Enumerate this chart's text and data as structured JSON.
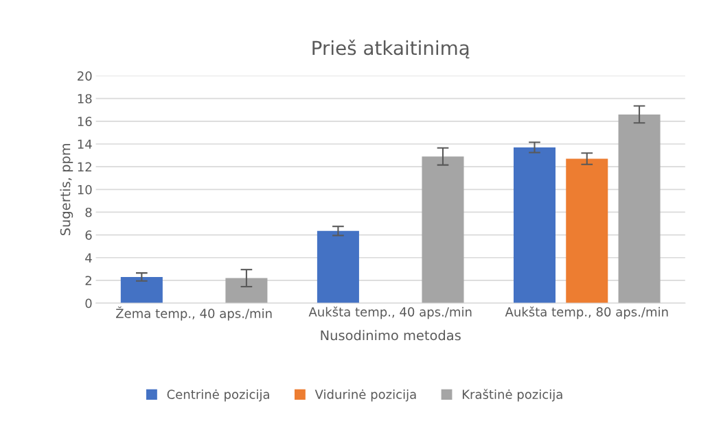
{
  "chart_data": {
    "type": "bar",
    "title": "Prieš atkaitinimą",
    "xlabel": "Nusodinimo metodas",
    "ylabel": "Sugertis, ppm",
    "categories": [
      "Žema temp., 40 aps./min",
      "Aukšta temp., 40 aps./min",
      "Aukšta temp., 80 aps./min"
    ],
    "series": [
      {
        "name": "Centrinė pozicija",
        "color": "#4472c4",
        "values": [
          2.3,
          6.35,
          13.7
        ],
        "errors": [
          0.35,
          0.4,
          0.45
        ]
      },
      {
        "name": "Vidurinė pozicija",
        "color": "#ed7d31",
        "values": [
          null,
          null,
          12.7
        ],
        "errors": [
          null,
          null,
          0.5
        ]
      },
      {
        "name": "Kraštinė pozicija",
        "color": "#a5a5a5",
        "values": [
          2.2,
          12.9,
          16.6
        ],
        "errors": [
          0.75,
          0.75,
          0.75
        ]
      }
    ],
    "ylim": [
      0,
      20
    ],
    "yticks": [
      0,
      2,
      4,
      6,
      8,
      10,
      12,
      14,
      16,
      18,
      20
    ],
    "grid": "y",
    "legend": "bottom"
  }
}
